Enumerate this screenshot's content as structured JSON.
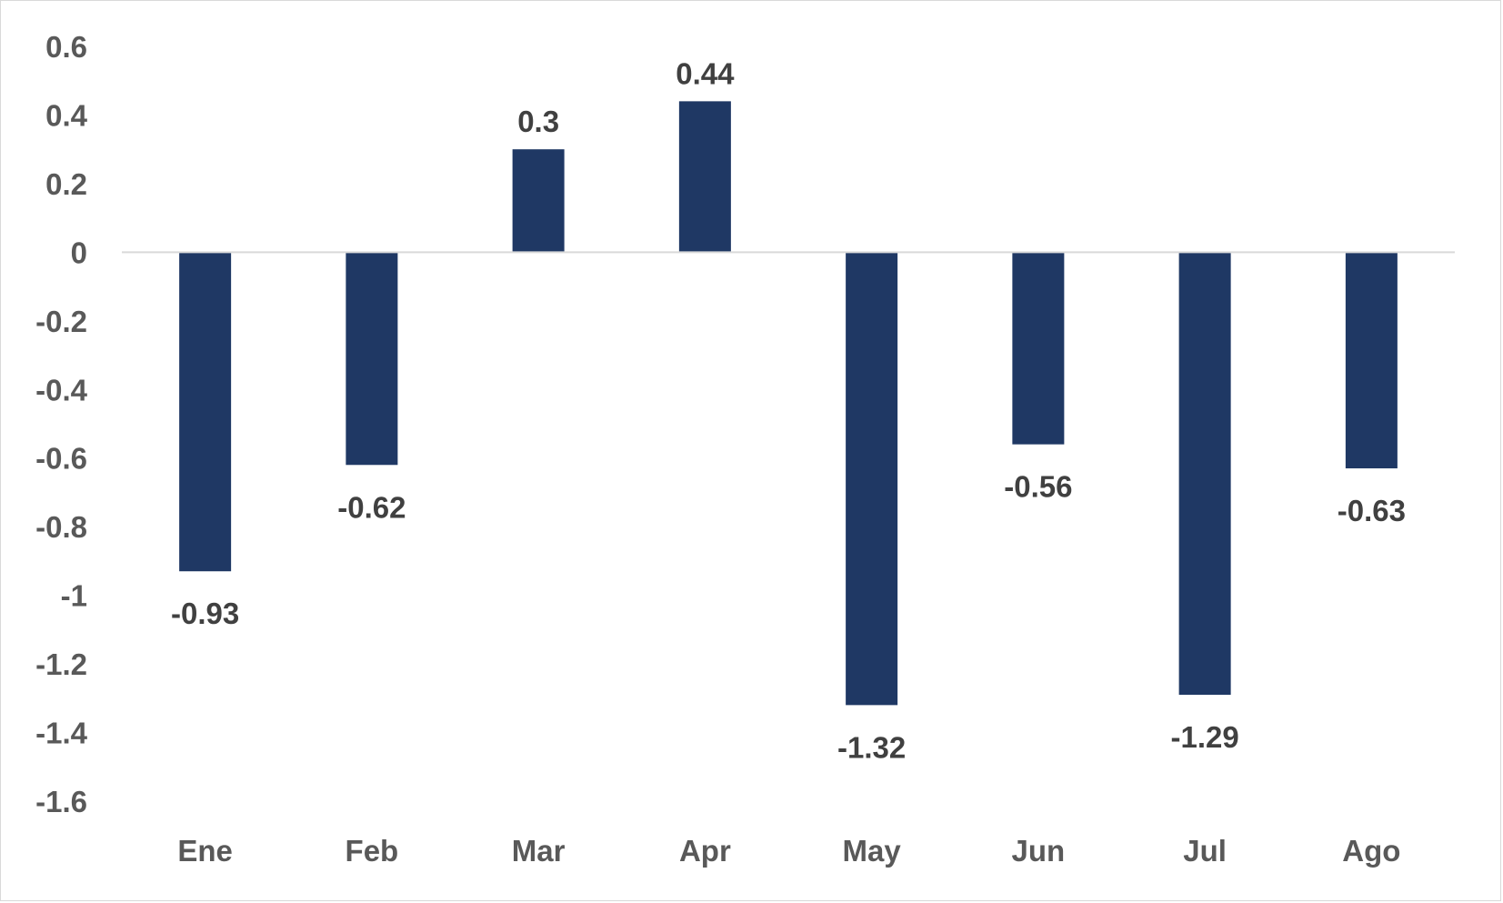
{
  "chart_data": {
    "type": "bar",
    "categories": [
      "Ene",
      "Feb",
      "Mar",
      "Apr",
      "May",
      "Jun",
      "Jul",
      "Ago"
    ],
    "values": [
      -0.93,
      -0.62,
      0.3,
      0.44,
      -1.32,
      -0.56,
      -1.29,
      -0.63
    ],
    "data_labels": [
      "-0.93",
      "-0.62",
      "0.3",
      "0.44",
      "-1.32",
      "-0.56",
      "-1.29",
      "-0.63"
    ],
    "y_ticks": [
      "0.6",
      "0.4",
      "0.2",
      "0",
      "-0.2",
      "-0.4",
      "-0.6",
      "-0.8",
      "-1",
      "-1.2",
      "-1.4",
      "-1.6"
    ],
    "y_tick_values": [
      0.6,
      0.4,
      0.2,
      0,
      -0.2,
      -0.4,
      -0.6,
      -0.8,
      -1,
      -1.2,
      -1.4,
      -1.6
    ],
    "ylim": [
      -1.6,
      0.6
    ],
    "title": "",
    "xlabel": "",
    "ylabel": "",
    "grid": false,
    "legend": "none",
    "bar_color": "#1f3864",
    "zero_line_color": "#d9d9d9"
  }
}
